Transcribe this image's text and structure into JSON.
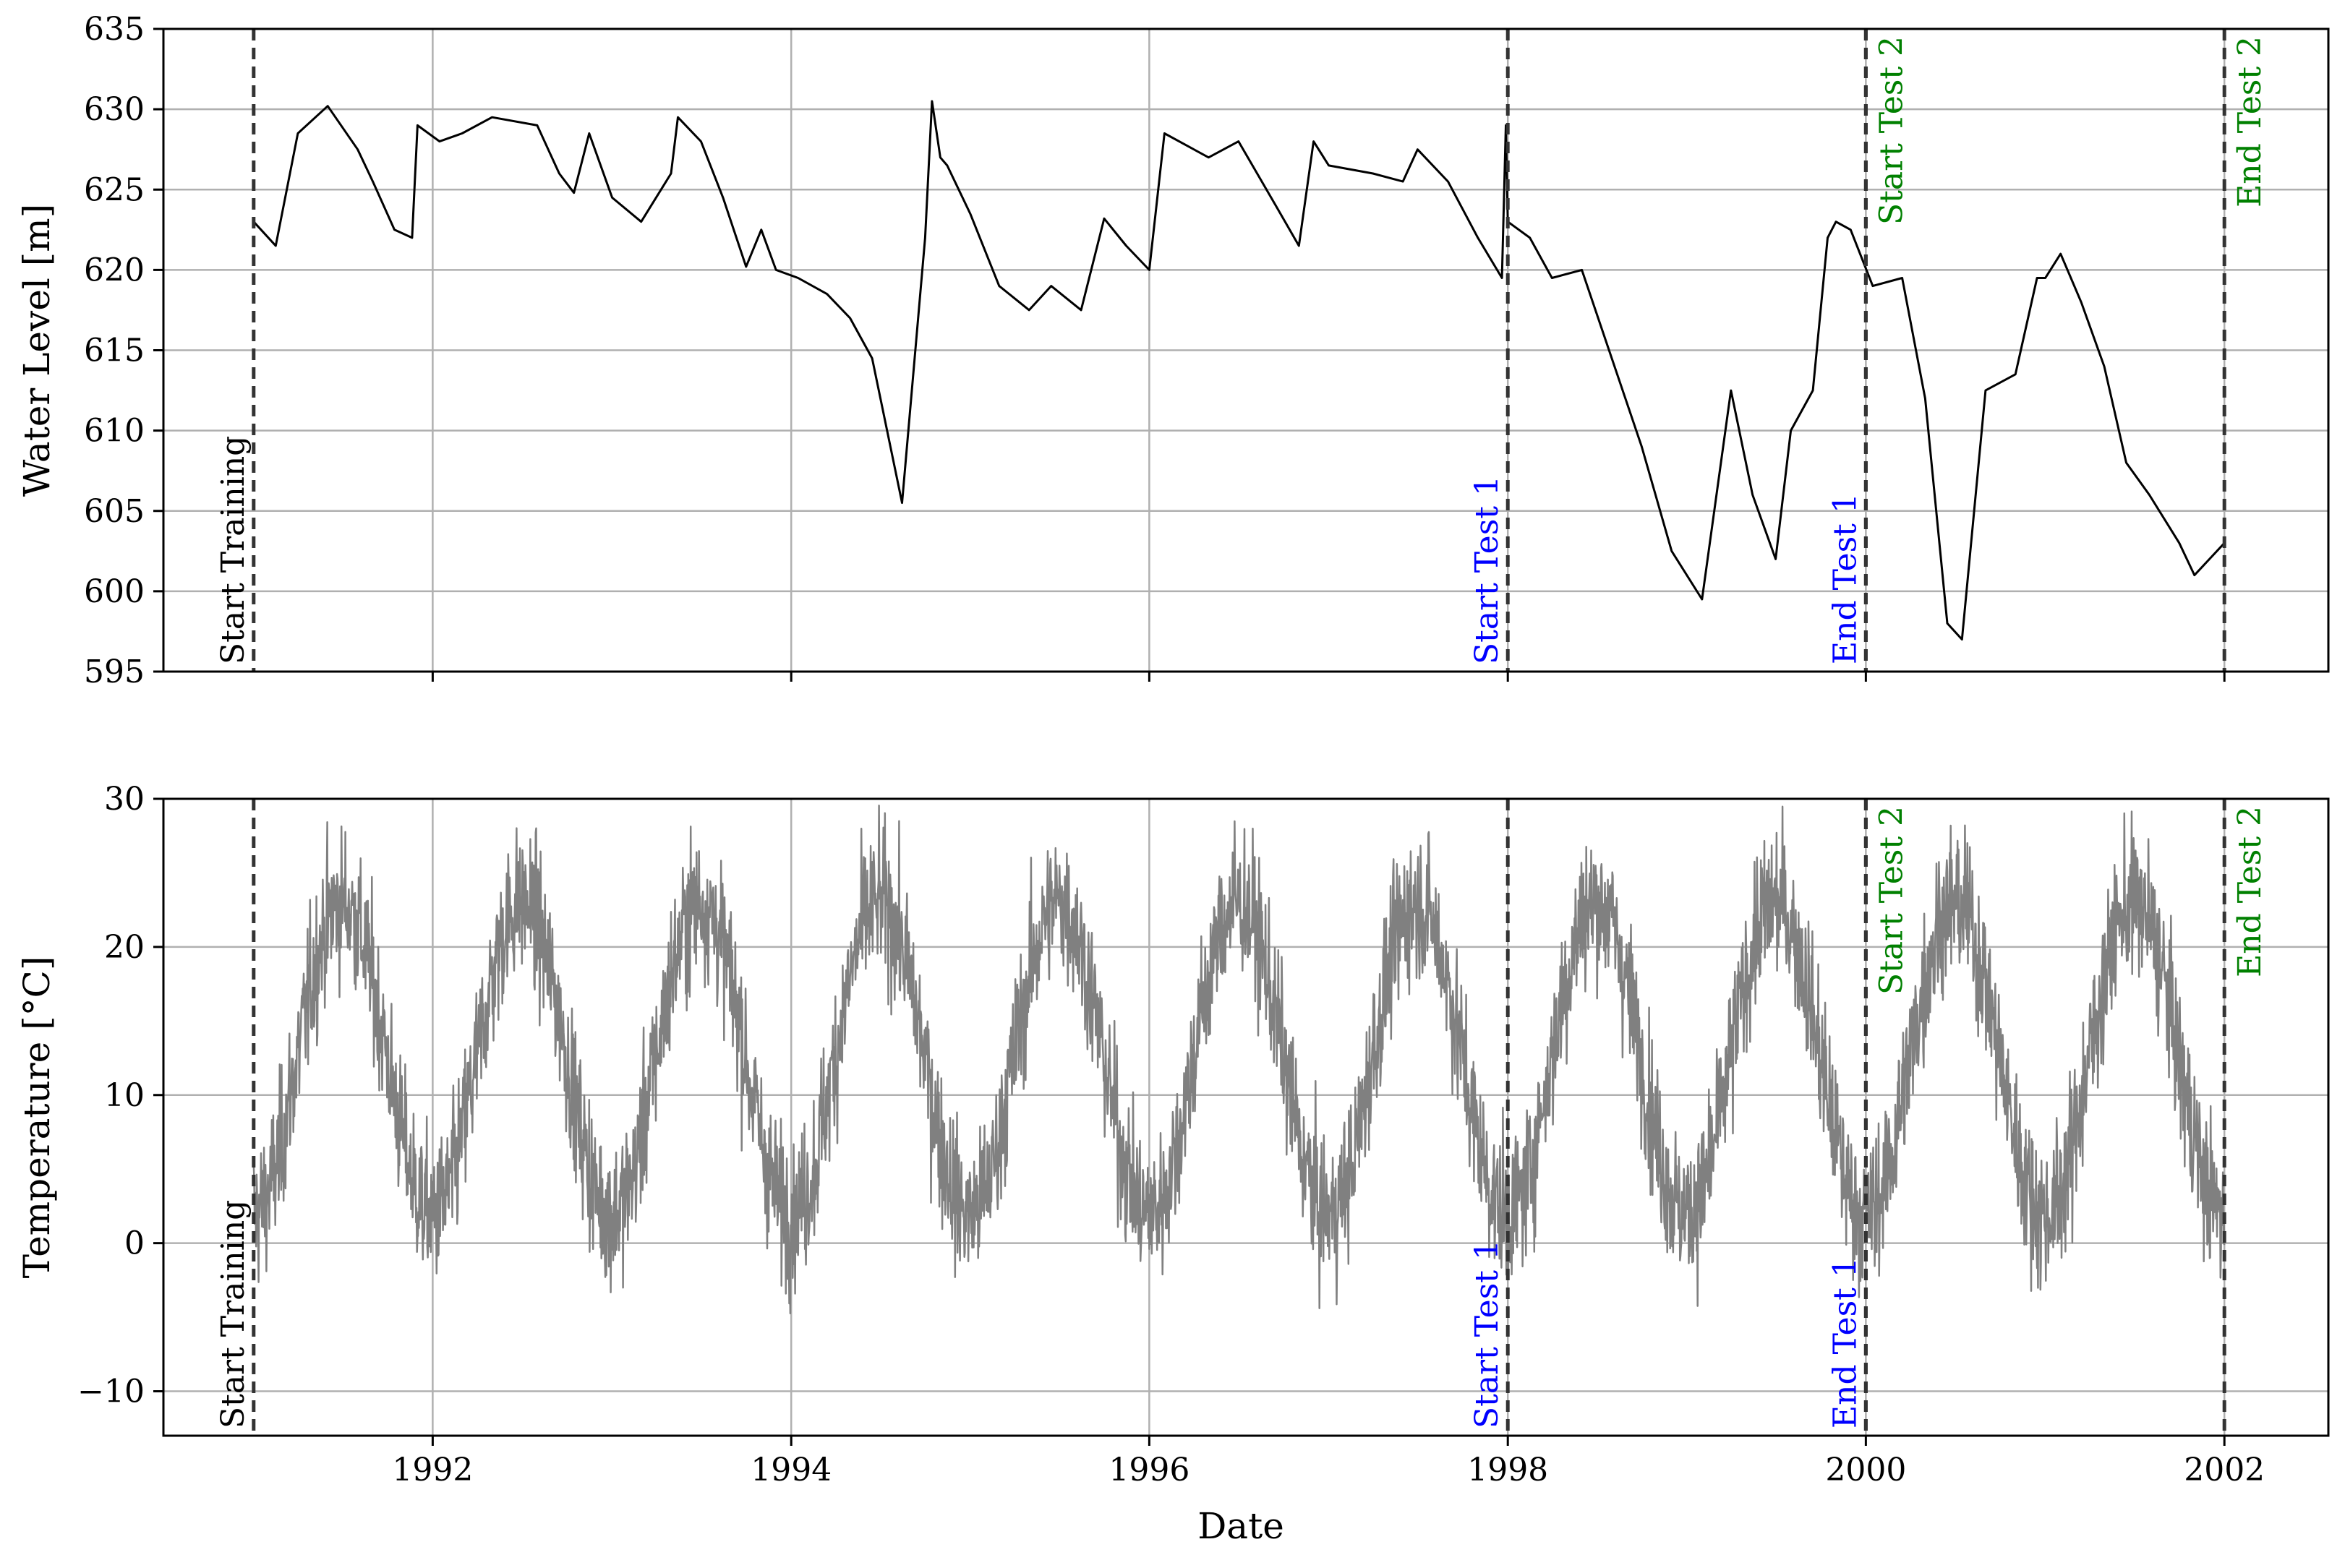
{
  "chart_data": [
    {
      "type": "line",
      "xlabel": "",
      "ylabel": "Water Level [m]",
      "ylim": [
        595,
        635
      ],
      "yticks": [
        595,
        600,
        605,
        610,
        615,
        620,
        625,
        630,
        635
      ],
      "xlim": [
        "1990-07-01",
        "2002-08-01"
      ],
      "xticks": [
        "1992-01-01",
        "1994-01-01",
        "1996-01-01",
        "1998-01-01",
        "2000-01-01",
        "2002-01-01"
      ],
      "xticklabels": [],
      "grid": true,
      "series": [
        {
          "color": "#000000",
          "x": [
            "1991-01-01",
            "1991-02-15",
            "1991-04-01",
            "1991-06-01",
            "1991-08-01",
            "1991-09-01",
            "1991-10-15",
            "1991-11-20",
            "1991-12-01",
            "1992-01-15",
            "1992-03-01",
            "1992-05-01",
            "1992-08-01",
            "1992-09-15",
            "1992-10-15",
            "1992-11-15",
            "1993-01-01",
            "1993-03-01",
            "1993-05-01",
            "1993-05-15",
            "1993-07-01",
            "1993-08-15",
            "1993-10-01",
            "1993-11-01",
            "1993-12-01",
            "1994-01-15",
            "1994-03-15",
            "1994-05-01",
            "1994-06-15",
            "1994-08-15",
            "1994-10-01",
            "1994-10-15",
            "1994-11-01",
            "1994-11-15",
            "1995-01-01",
            "1995-03-01",
            "1995-05-01",
            "1995-06-15",
            "1995-08-15",
            "1995-10-01",
            "1995-11-15",
            "1996-01-01",
            "1996-02-01",
            "1996-05-01",
            "1996-07-01",
            "1996-09-15",
            "1996-11-01",
            "1996-12-01",
            "1997-01-01",
            "1997-04-01",
            "1997-06-01",
            "1997-07-01",
            "1997-09-01",
            "1997-11-01",
            "1997-12-20",
            "1997-12-28",
            "1998-01-01",
            "1998-02-15",
            "1998-04-01",
            "1998-06-01",
            "1998-08-01",
            "1998-10-01",
            "1998-12-01",
            "1999-02-01",
            "1999-04-01",
            "1999-05-15",
            "1999-07-01",
            "1999-08-01",
            "1999-09-15",
            "1999-10-15",
            "1999-11-01",
            "1999-12-01",
            "2000-01-15",
            "2000-03-15",
            "2000-05-01",
            "2000-06-15",
            "2000-07-15",
            "2000-09-01",
            "2000-11-01",
            "2000-12-15",
            "2001-01-01",
            "2001-02-01",
            "2001-03-15",
            "2001-05-01",
            "2001-06-15",
            "2001-08-01",
            "2001-10-01",
            "2001-11-01",
            "2002-01-01"
          ],
          "y": [
            623.0,
            621.5,
            628.5,
            630.2,
            627.5,
            625.5,
            622.5,
            622.0,
            629.0,
            628.0,
            628.5,
            629.5,
            629.0,
            626.0,
            624.8,
            628.5,
            624.5,
            623.0,
            626.0,
            629.5,
            628.0,
            624.5,
            620.2,
            622.5,
            620.0,
            619.5,
            618.5,
            617.0,
            614.5,
            605.5,
            622.0,
            630.5,
            627.0,
            626.5,
            623.5,
            619.0,
            617.5,
            619.0,
            617.5,
            623.2,
            621.5,
            620.0,
            628.5,
            627.0,
            628.0,
            624.0,
            621.5,
            628.0,
            626.5,
            626.0,
            625.5,
            627.5,
            625.5,
            622.0,
            619.5,
            629.0,
            623.0,
            622.0,
            619.5,
            620.0,
            614.5,
            609.0,
            602.5,
            599.5,
            612.5,
            606.0,
            602.0,
            610.0,
            612.5,
            622.0,
            623.0,
            622.5,
            619.0,
            619.5,
            612.0,
            598.0,
            597.0,
            612.5,
            613.5,
            619.5,
            619.5,
            621.0,
            618.0,
            614.0,
            608.0,
            606.0,
            603.0,
            601.0,
            603.0
          ]
        }
      ]
    },
    {
      "type": "line",
      "xlabel": "Date",
      "ylabel": "Temperature [°C]",
      "ylim": [
        -13,
        30
      ],
      "yticks": [
        -10,
        0,
        10,
        20,
        30
      ],
      "xlim": [
        "1990-07-01",
        "2002-08-01"
      ],
      "xticks": [
        "1992-01-01",
        "1994-01-01",
        "1996-01-01",
        "1998-01-01",
        "2000-01-01",
        "2002-01-01"
      ],
      "xticklabels": [
        "1992",
        "1994",
        "1996",
        "1998",
        "2000",
        "2002"
      ],
      "grid": true,
      "series": [
        {
          "color": "#808080",
          "seasonal_model": {
            "start": "1991-01-01",
            "end": "2002-01-01",
            "mean_c": 12.5,
            "amplitude_c": 10.5,
            "peak_month": 7,
            "daily_noise_c": 3.5
          }
        }
      ]
    }
  ],
  "markers": [
    {
      "date": "1991-01-01",
      "label": "Start Training",
      "color": "#000000",
      "side": "left"
    },
    {
      "date": "1998-01-01",
      "label": "Start Test 1",
      "color": "#0000ff",
      "side": "left"
    },
    {
      "date": "2000-01-01",
      "label": "End Test 1",
      "color": "#0000ff",
      "side": "left"
    },
    {
      "date": "2000-01-01",
      "label": "Start Test 2",
      "color": "#008000",
      "side": "right"
    },
    {
      "date": "2002-01-01",
      "label": "End Test 2",
      "color": "#008000",
      "side": "right"
    }
  ]
}
